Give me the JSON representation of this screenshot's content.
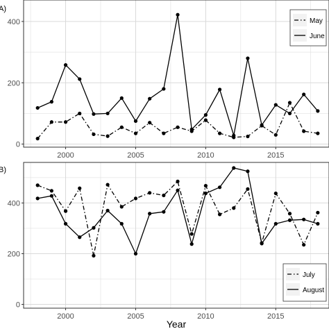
{
  "chart_data": [
    {
      "type": "line",
      "panel_label": "A)",
      "x": [
        1998,
        1999,
        2000,
        2001,
        2002,
        2003,
        2004,
        2005,
        2006,
        2007,
        2008,
        2009,
        2010,
        2011,
        2012,
        2013,
        2014,
        2015,
        2016,
        2017,
        2018
      ],
      "series": [
        {
          "name": "May",
          "linestyle": "dashdot",
          "values": [
            18,
            72,
            72,
            100,
            32,
            26,
            55,
            35,
            70,
            35,
            55,
            42,
            78,
            35,
            22,
            25,
            60,
            30,
            135,
            42,
            35
          ]
        },
        {
          "name": "June",
          "linestyle": "solid",
          "values": [
            118,
            138,
            258,
            212,
            98,
            100,
            150,
            75,
            148,
            180,
            422,
            48,
            95,
            178,
            28,
            280,
            62,
            128,
            100,
            162,
            108
          ]
        }
      ],
      "xlim": [
        1997,
        2018.8
      ],
      "ylim": [
        -10,
        470
      ],
      "yticks": [
        "0",
        "200",
        "400"
      ],
      "xticks": [
        "2000",
        "2005",
        "2010",
        "2015"
      ],
      "legend_position": "top-right",
      "grid": true
    },
    {
      "type": "line",
      "panel_label": "B)",
      "x": [
        1998,
        1999,
        2000,
        2001,
        2002,
        2003,
        2004,
        2005,
        2006,
        2007,
        2008,
        2009,
        2010,
        2011,
        2012,
        2013,
        2014,
        2015,
        2016,
        2017,
        2018
      ],
      "series": [
        {
          "name": "July",
          "linestyle": "dashdot",
          "values": [
            470,
            448,
            368,
            458,
            192,
            472,
            385,
            418,
            440,
            430,
            485,
            278,
            468,
            355,
            380,
            455,
            242,
            438,
            358,
            235,
            362
          ]
        },
        {
          "name": "August",
          "linestyle": "solid",
          "values": [
            418,
            428,
            318,
            265,
            302,
            370,
            318,
            200,
            358,
            365,
            450,
            238,
            438,
            462,
            538,
            525,
            240,
            318,
            332,
            335,
            318
          ]
        }
      ],
      "xlim": [
        1997,
        2018.8
      ],
      "ylim": [
        -15,
        560
      ],
      "yticks": [
        "0",
        "200",
        "400"
      ],
      "xticks": [
        "2000",
        "2005",
        "2010",
        "2015"
      ],
      "xlabel": "Year",
      "legend_position": "bottom-right",
      "grid": true
    }
  ],
  "colors": {
    "panel_background": "#ffffff",
    "grid": "#d9d9d9",
    "panel_border": "#333333",
    "line": "#000000",
    "tick_label": "#4d4d4d",
    "legend_key_background": "#f2f2f2"
  }
}
